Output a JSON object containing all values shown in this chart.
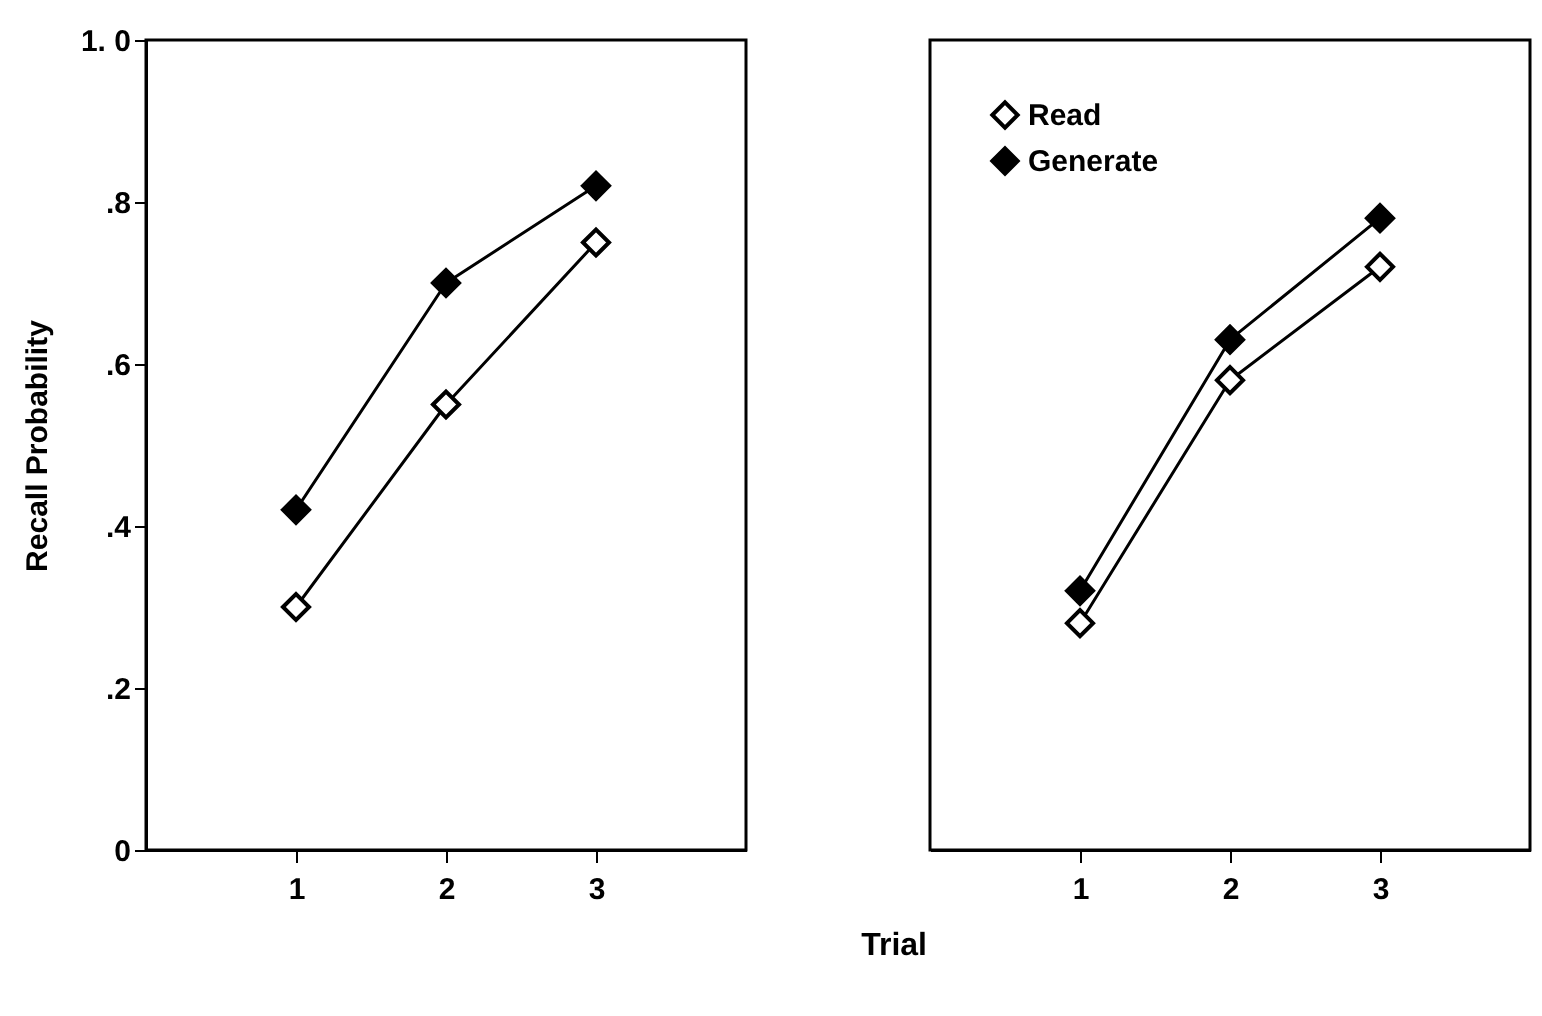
{
  "chart_data": [
    {
      "type": "line",
      "ylabel": "Recall Probability",
      "xlabel": "Trial",
      "x": [
        1,
        2,
        3
      ],
      "xlim": [
        0,
        4
      ],
      "xticks": [
        1,
        2,
        3
      ],
      "ylim": [
        0,
        1
      ],
      "yticks": [
        {
          "value": 0,
          "label": "0"
        },
        {
          "value": 0.2,
          "label": ".2"
        },
        {
          "value": 0.4,
          "label": ".4"
        },
        {
          "value": 0.6,
          "label": ".6"
        },
        {
          "value": 0.8,
          "label": ".8"
        },
        {
          "value": 1,
          "label": "1. 0"
        }
      ],
      "marker": "diamond",
      "grid": false,
      "series": [
        {
          "color": "#ffffff",
          "values": [
            0.3,
            0.55,
            0.75
          ]
        },
        {
          "color": "#000000",
          "values": [
            0.42,
            0.7,
            0.82
          ]
        }
      ]
    },
    {
      "type": "line",
      "x": [
        1,
        2,
        3
      ],
      "xlim": [
        0,
        4
      ],
      "xticks": [
        1,
        2,
        3
      ],
      "ylim": [
        0,
        1
      ],
      "tick_labels": "x",
      "marker": "diamond",
      "grid": false,
      "legend": "top left",
      "series": [
        {
          "name": "Read",
          "color": "#ffffff",
          "values": [
            0.28,
            0.58,
            0.72
          ]
        },
        {
          "name": "Generate",
          "color": "#000000",
          "values": [
            0.32,
            0.63,
            0.78
          ]
        }
      ]
    }
  ]
}
